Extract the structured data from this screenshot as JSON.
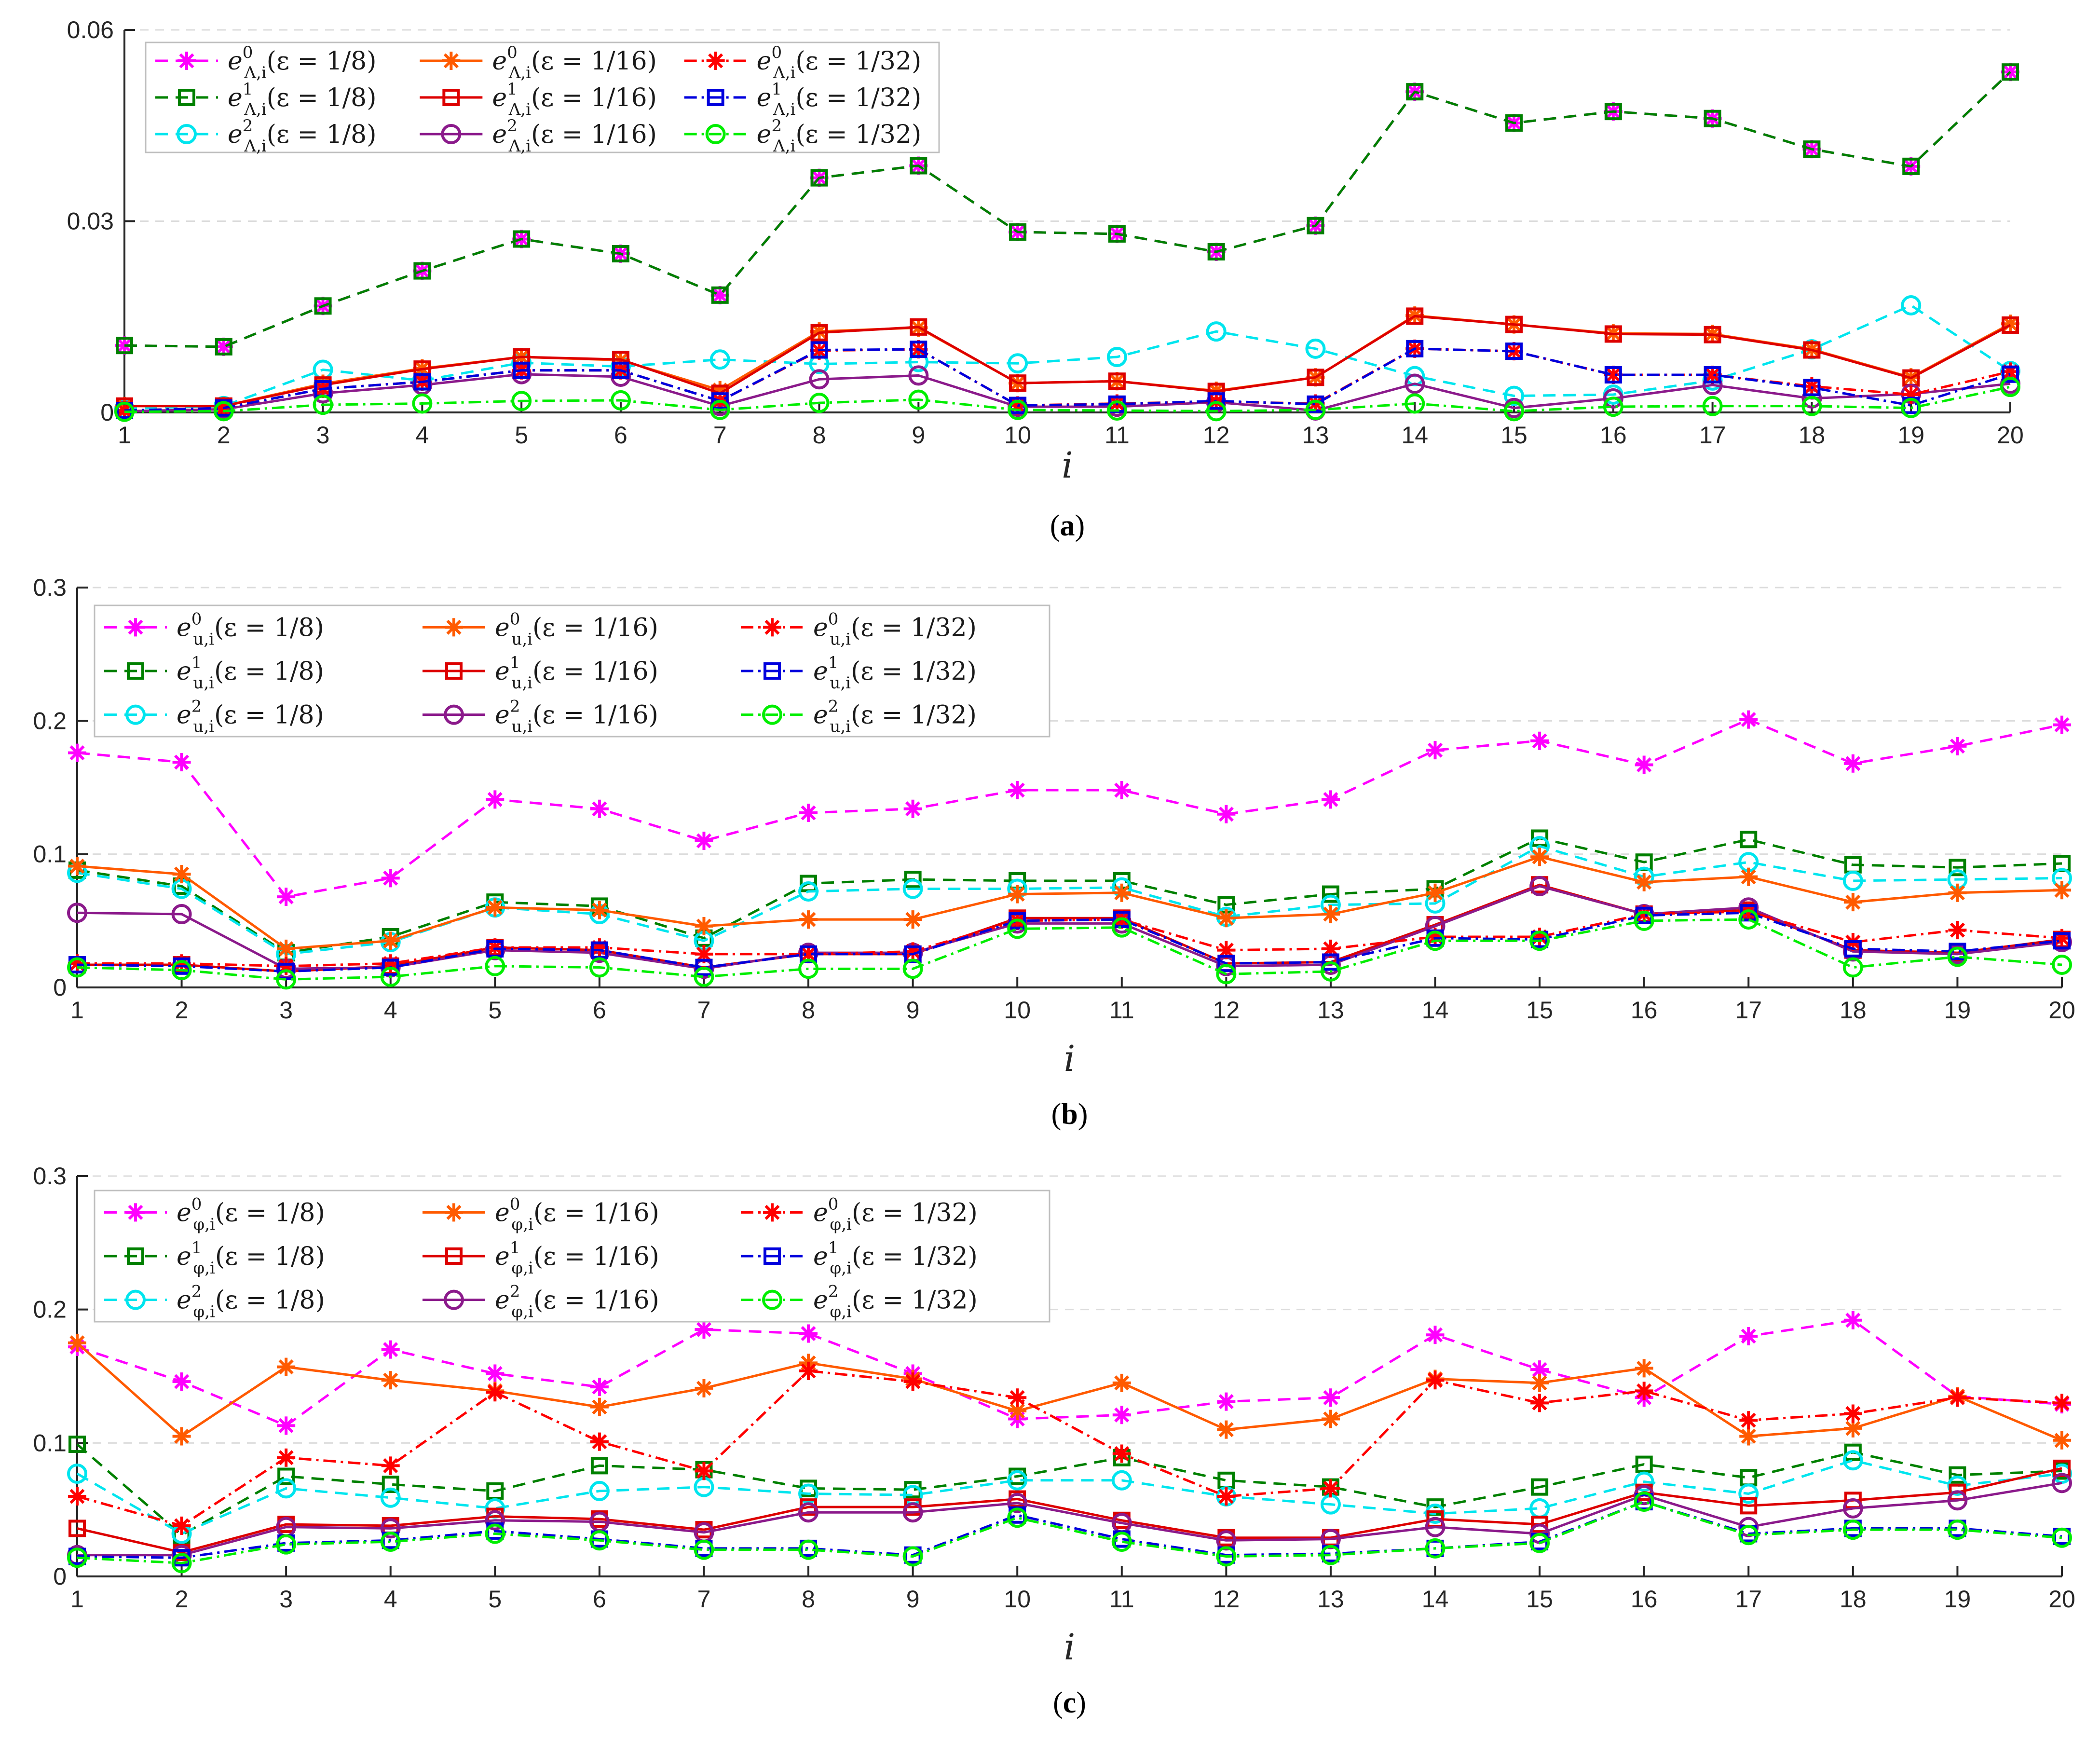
{
  "figure": {
    "x_axis_label": "i",
    "legend_series_labels": [
      "e⁰ (ε = 1/8)",
      "e¹ (ε = 1/8)",
      "e² (ε = 1/8)",
      "e⁰ (ε = 1/16)",
      "e¹ (ε = 1/16)",
      "e² (ε = 1/16)",
      "e⁰ (ε = 1/32)",
      "e¹ (ε = 1/32)",
      "e² (ε = 1/32)"
    ]
  },
  "colors": {
    "e0_eps8": "#ff00ff",
    "e1_eps8": "#008000",
    "e2_eps8": "#00e5ee",
    "e0_eps16": "#ff5a00",
    "e1_eps16": "#dd0000",
    "e2_eps16": "#8b1a8b",
    "e0_eps32": "#ff0000",
    "e1_eps32": "#0000dd",
    "e2_eps32": "#00ee00",
    "axis": "#262626",
    "grid": "#dcdcdc"
  },
  "chart_data": [
    {
      "type": "line",
      "panel_label": "a",
      "subscript": "Λ,i",
      "xlabel": "i",
      "x": [
        1,
        2,
        3,
        4,
        5,
        6,
        7,
        8,
        9,
        10,
        11,
        12,
        13,
        14,
        15,
        16,
        17,
        18,
        19,
        20
      ],
      "ylim": [
        0,
        0.06
      ],
      "yticks": [
        "0",
        "0.03",
        "0.06"
      ],
      "ytick_values": [
        0,
        0.03,
        0.06
      ],
      "series": [
        {
          "key": "e0_eps8",
          "sup": "0",
          "eps": "1/8",
          "values": [
            0.0105,
            0.0103,
            0.0167,
            0.0222,
            0.0272,
            0.0249,
            0.0184,
            0.0368,
            0.0387,
            0.0283,
            0.028,
            0.0252,
            0.0293,
            0.0503,
            0.0454,
            0.0472,
            0.0461,
            0.0413,
            0.0386,
            0.0534
          ]
        },
        {
          "key": "e1_eps8",
          "sup": "1",
          "eps": "1/8",
          "values": [
            0.0105,
            0.0103,
            0.0167,
            0.0222,
            0.0272,
            0.0249,
            0.0184,
            0.0368,
            0.0387,
            0.0283,
            0.028,
            0.0252,
            0.0293,
            0.0503,
            0.0454,
            0.0472,
            0.0461,
            0.0413,
            0.0386,
            0.0534
          ]
        },
        {
          "key": "e2_eps8",
          "sup": "2",
          "eps": "1/8",
          "values": [
            0.0006,
            0.001,
            0.0067,
            0.005,
            0.0078,
            0.0072,
            0.0083,
            0.0076,
            0.0079,
            0.0077,
            0.0087,
            0.0127,
            0.01,
            0.0057,
            0.0026,
            0.0028,
            0.005,
            0.0099,
            0.0168,
            0.0065
          ]
        },
        {
          "key": "e0_eps16",
          "sup": "0",
          "eps": "1/16",
          "values": [
            0.001,
            0.001,
            0.0045,
            0.0069,
            0.0087,
            0.0082,
            0.0035,
            0.0127,
            0.0133,
            0.0046,
            0.0049,
            0.0034,
            0.0055,
            0.0152,
            0.0138,
            0.0124,
            0.0123,
            0.0099,
            0.0055,
            0.0139
          ]
        },
        {
          "key": "e1_eps16",
          "sup": "1",
          "eps": "1/16",
          "values": [
            0.001,
            0.001,
            0.0043,
            0.0068,
            0.0087,
            0.0083,
            0.003,
            0.0125,
            0.0134,
            0.0046,
            0.0049,
            0.0033,
            0.0055,
            0.0151,
            0.0138,
            0.0123,
            0.0122,
            0.0098,
            0.0054,
            0.0137
          ]
        },
        {
          "key": "e2_eps16",
          "sup": "2",
          "eps": "1/16",
          "values": [
            0.0002,
            0.0005,
            0.003,
            0.0043,
            0.006,
            0.0056,
            0.001,
            0.0052,
            0.0058,
            0.0009,
            0.0009,
            0.0016,
            0.0003,
            0.0045,
            0.0007,
            0.0022,
            0.0043,
            0.0022,
            0.0029,
            0.0045
          ]
        },
        {
          "key": "e0_eps32",
          "sup": "0",
          "eps": "1/32",
          "values": [
            0.0003,
            0.0007,
            0.0037,
            0.0048,
            0.0066,
            0.0066,
            0.0018,
            0.0097,
            0.0099,
            0.0011,
            0.0014,
            0.0017,
            0.0014,
            0.01,
            0.0096,
            0.0059,
            0.0059,
            0.0041,
            0.0028,
            0.0064
          ]
        },
        {
          "key": "e1_eps32",
          "sup": "1",
          "eps": "1/32",
          "values": [
            0.0003,
            0.0007,
            0.0037,
            0.0048,
            0.0066,
            0.0066,
            0.0018,
            0.0098,
            0.0099,
            0.0011,
            0.0013,
            0.0018,
            0.0013,
            0.01,
            0.0096,
            0.0059,
            0.0059,
            0.0039,
            0.0011,
            0.006
          ]
        },
        {
          "key": "e2_eps32",
          "sup": "2",
          "eps": "1/32",
          "values": [
            0.0001,
            0.0002,
            0.0012,
            0.0014,
            0.0018,
            0.0019,
            0.0004,
            0.0015,
            0.002,
            0.0004,
            0.0003,
            0.0002,
            0.0004,
            0.0014,
            0.0002,
            0.0009,
            0.001,
            0.001,
            0.0007,
            0.004
          ]
        }
      ]
    },
    {
      "type": "line",
      "panel_label": "b",
      "subscript": "u,i",
      "xlabel": "i",
      "x": [
        1,
        2,
        3,
        4,
        5,
        6,
        7,
        8,
        9,
        10,
        11,
        12,
        13,
        14,
        15,
        16,
        17,
        18,
        19,
        20
      ],
      "ylim": [
        0,
        0.3
      ],
      "yticks": [
        "0",
        "0.1",
        "0.2",
        "0.3"
      ],
      "ytick_values": [
        0,
        0.1,
        0.2,
        0.3
      ],
      "series": [
        {
          "key": "e0_eps8",
          "sup": "0",
          "eps": "1/8",
          "values": [
            0.176,
            0.169,
            0.068,
            0.082,
            0.141,
            0.134,
            0.11,
            0.131,
            0.134,
            0.148,
            0.148,
            0.13,
            0.141,
            0.178,
            0.185,
            0.167,
            0.201,
            0.168,
            0.181,
            0.197
          ]
        },
        {
          "key": "e1_eps8",
          "sup": "1",
          "eps": "1/8",
          "values": [
            0.088,
            0.076,
            0.026,
            0.038,
            0.064,
            0.061,
            0.037,
            0.078,
            0.081,
            0.08,
            0.08,
            0.062,
            0.07,
            0.074,
            0.112,
            0.094,
            0.111,
            0.092,
            0.09,
            0.093
          ]
        },
        {
          "key": "e2_eps8",
          "sup": "2",
          "eps": "1/8",
          "values": [
            0.086,
            0.074,
            0.025,
            0.034,
            0.06,
            0.055,
            0.035,
            0.072,
            0.074,
            0.074,
            0.075,
            0.053,
            0.062,
            0.063,
            0.106,
            0.083,
            0.094,
            0.08,
            0.081,
            0.082
          ]
        },
        {
          "key": "e0_eps16",
          "sup": "0",
          "eps": "1/16",
          "values": [
            0.091,
            0.085,
            0.029,
            0.035,
            0.06,
            0.058,
            0.046,
            0.051,
            0.051,
            0.07,
            0.071,
            0.052,
            0.055,
            0.071,
            0.098,
            0.079,
            0.083,
            0.064,
            0.071,
            0.073
          ]
        },
        {
          "key": "e1_eps16",
          "sup": "1",
          "eps": "1/16",
          "values": [
            0.017,
            0.017,
            0.012,
            0.016,
            0.03,
            0.028,
            0.015,
            0.025,
            0.025,
            0.052,
            0.052,
            0.018,
            0.019,
            0.047,
            0.077,
            0.055,
            0.058,
            0.028,
            0.026,
            0.036
          ]
        },
        {
          "key": "e2_eps16",
          "sup": "2",
          "eps": "1/16",
          "values": [
            0.056,
            0.055,
            0.014,
            0.015,
            0.028,
            0.026,
            0.014,
            0.026,
            0.026,
            0.048,
            0.048,
            0.016,
            0.017,
            0.046,
            0.076,
            0.055,
            0.06,
            0.027,
            0.025,
            0.034
          ]
        },
        {
          "key": "e0_eps32",
          "sup": "0",
          "eps": "1/32",
          "values": [
            0.018,
            0.018,
            0.016,
            0.018,
            0.03,
            0.03,
            0.025,
            0.025,
            0.027,
            0.05,
            0.051,
            0.028,
            0.029,
            0.038,
            0.038,
            0.055,
            0.057,
            0.034,
            0.043,
            0.037
          ]
        },
        {
          "key": "e1_eps32",
          "sup": "1",
          "eps": "1/32",
          "values": [
            0.017,
            0.016,
            0.012,
            0.015,
            0.029,
            0.028,
            0.015,
            0.025,
            0.025,
            0.05,
            0.051,
            0.018,
            0.019,
            0.037,
            0.036,
            0.054,
            0.056,
            0.029,
            0.027,
            0.035
          ]
        },
        {
          "key": "e2_eps32",
          "sup": "2",
          "eps": "1/32",
          "values": [
            0.015,
            0.013,
            0.006,
            0.008,
            0.016,
            0.015,
            0.008,
            0.014,
            0.014,
            0.044,
            0.045,
            0.01,
            0.012,
            0.035,
            0.035,
            0.05,
            0.051,
            0.015,
            0.023,
            0.017
          ]
        }
      ]
    },
    {
      "type": "line",
      "panel_label": "c",
      "subscript": "φ,i",
      "xlabel": "i",
      "x": [
        1,
        2,
        3,
        4,
        5,
        6,
        7,
        8,
        9,
        10,
        11,
        12,
        13,
        14,
        15,
        16,
        17,
        18,
        19,
        20
      ],
      "ylim": [
        0,
        0.3
      ],
      "yticks": [
        "0",
        "0.1",
        "0.2",
        "0.3"
      ],
      "ytick_values": [
        0,
        0.1,
        0.2,
        0.3
      ],
      "series": [
        {
          "key": "e0_eps8",
          "sup": "0",
          "eps": "1/8",
          "values": [
            0.172,
            0.146,
            0.113,
            0.17,
            0.152,
            0.142,
            0.185,
            0.182,
            0.152,
            0.118,
            0.121,
            0.131,
            0.134,
            0.181,
            0.155,
            0.134,
            0.18,
            0.192,
            0.135,
            0.129
          ]
        },
        {
          "key": "e1_eps8",
          "sup": "1",
          "eps": "1/8",
          "values": [
            0.099,
            0.031,
            0.075,
            0.069,
            0.064,
            0.083,
            0.08,
            0.066,
            0.065,
            0.075,
            0.089,
            0.072,
            0.067,
            0.052,
            0.067,
            0.084,
            0.074,
            0.093,
            0.076,
            0.079
          ]
        },
        {
          "key": "e2_eps8",
          "sup": "2",
          "eps": "1/8",
          "values": [
            0.077,
            0.032,
            0.066,
            0.059,
            0.051,
            0.064,
            0.067,
            0.062,
            0.061,
            0.072,
            0.072,
            0.06,
            0.054,
            0.047,
            0.051,
            0.071,
            0.062,
            0.087,
            0.068,
            0.077
          ]
        },
        {
          "key": "e0_eps16",
          "sup": "0",
          "eps": "1/16",
          "values": [
            0.175,
            0.105,
            0.157,
            0.147,
            0.139,
            0.127,
            0.141,
            0.16,
            0.148,
            0.124,
            0.145,
            0.11,
            0.118,
            0.148,
            0.145,
            0.156,
            0.105,
            0.111,
            0.135,
            0.102
          ]
        },
        {
          "key": "e1_eps16",
          "sup": "1",
          "eps": "1/16",
          "values": [
            0.036,
            0.018,
            0.039,
            0.038,
            0.045,
            0.043,
            0.035,
            0.052,
            0.052,
            0.058,
            0.042,
            0.029,
            0.029,
            0.043,
            0.039,
            0.063,
            0.053,
            0.057,
            0.063,
            0.081
          ]
        },
        {
          "key": "e2_eps16",
          "sup": "2",
          "eps": "1/16",
          "values": [
            0.016,
            0.016,
            0.037,
            0.036,
            0.042,
            0.041,
            0.033,
            0.048,
            0.048,
            0.055,
            0.04,
            0.027,
            0.028,
            0.037,
            0.032,
            0.061,
            0.037,
            0.051,
            0.057,
            0.07
          ]
        },
        {
          "key": "e0_eps32",
          "sup": "0",
          "eps": "1/32",
          "values": [
            0.06,
            0.038,
            0.089,
            0.083,
            0.138,
            0.101,
            0.079,
            0.154,
            0.146,
            0.134,
            0.092,
            0.06,
            0.066,
            0.147,
            0.13,
            0.139,
            0.117,
            0.122,
            0.134,
            0.13
          ]
        },
        {
          "key": "e1_eps32",
          "sup": "1",
          "eps": "1/32",
          "values": [
            0.015,
            0.014,
            0.025,
            0.027,
            0.034,
            0.028,
            0.021,
            0.021,
            0.016,
            0.046,
            0.028,
            0.016,
            0.017,
            0.021,
            0.026,
            0.056,
            0.032,
            0.036,
            0.036,
            0.03
          ]
        },
        {
          "key": "e2_eps32",
          "sup": "2",
          "eps": "1/32",
          "values": [
            0.014,
            0.01,
            0.024,
            0.026,
            0.032,
            0.027,
            0.02,
            0.02,
            0.015,
            0.044,
            0.026,
            0.015,
            0.016,
            0.021,
            0.025,
            0.056,
            0.031,
            0.035,
            0.035,
            0.029
          ]
        }
      ]
    }
  ]
}
